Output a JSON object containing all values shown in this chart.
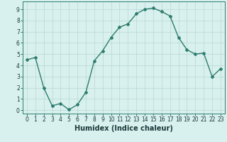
{
  "x": [
    0,
    1,
    2,
    3,
    4,
    5,
    6,
    7,
    8,
    9,
    10,
    11,
    12,
    13,
    14,
    15,
    16,
    17,
    18,
    19,
    20,
    21,
    22,
    23
  ],
  "y": [
    4.5,
    4.7,
    2.0,
    0.4,
    0.6,
    0.05,
    0.5,
    1.6,
    4.4,
    5.3,
    6.5,
    7.4,
    7.7,
    8.6,
    9.0,
    9.1,
    8.8,
    8.4,
    6.5,
    5.4,
    5.0,
    5.1,
    3.0,
    3.7
  ],
  "line_color": "#2e7d6e",
  "marker": "D",
  "marker_size": 2,
  "line_width": 1.0,
  "bg_color": "#d8f0ee",
  "grid_color": "#b8d8d4",
  "xlabel": "Humidex (Indice chaleur)",
  "xlabel_fontsize": 7,
  "xlim": [
    -0.5,
    23.5
  ],
  "ylim": [
    -0.3,
    9.7
  ],
  "xtick_labels": [
    "0",
    "1",
    "2",
    "3",
    "4",
    "5",
    "6",
    "7",
    "8",
    "9",
    "10",
    "11",
    "12",
    "13",
    "14",
    "15",
    "16",
    "17",
    "18",
    "19",
    "20",
    "21",
    "22",
    "23"
  ],
  "ytick_values": [
    0,
    1,
    2,
    3,
    4,
    5,
    6,
    7,
    8,
    9
  ],
  "tick_fontsize": 5.5,
  "spine_color": "#2e7d6e"
}
